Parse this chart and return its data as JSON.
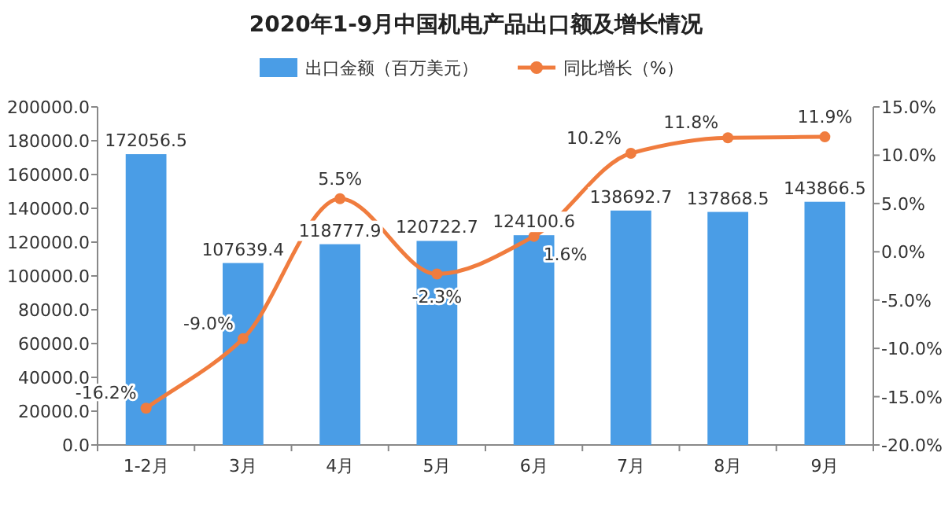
{
  "chart_data": {
    "type": "bar",
    "title": "2020年1-9月中国机电产品出口额及增长情况",
    "categories": [
      "1-2月",
      "3月",
      "4月",
      "5月",
      "6月",
      "7月",
      "8月",
      "9月"
    ],
    "series": [
      {
        "name": "出口金额（百万美元）",
        "type": "bar",
        "color": "#4a9de6",
        "values": [
          172056.5,
          107639.4,
          118777.9,
          120722.7,
          124100.6,
          138692.7,
          137868.5,
          143866.5
        ]
      },
      {
        "name": "同比增长（%）",
        "type": "line",
        "axis": "y2",
        "color": "#f07c3e",
        "marker": "circle",
        "values": [
          -16.2,
          -9.0,
          5.5,
          -2.3,
          1.6,
          10.2,
          11.8,
          11.9
        ],
        "value_labels": [
          "-16.2%",
          "-9.0%",
          "5.5%",
          "-2.3%",
          "1.6%",
          "10.2%",
          "11.8%",
          "11.9%"
        ]
      }
    ],
    "data_labels": true,
    "ylim": [
      0,
      200000
    ],
    "yticks": [
      {
        "value": 0,
        "label": "0.0"
      },
      {
        "value": 20000,
        "label": "20000.0"
      },
      {
        "value": 40000,
        "label": "40000.0"
      },
      {
        "value": 60000,
        "label": "60000.0"
      },
      {
        "value": 80000,
        "label": "80000.0"
      },
      {
        "value": 100000,
        "label": "100000.0"
      },
      {
        "value": 120000,
        "label": "120000.0"
      },
      {
        "value": 140000,
        "label": "140000.0"
      },
      {
        "value": 160000,
        "label": "160000.0"
      },
      {
        "value": 180000,
        "label": "180000.0"
      },
      {
        "value": 200000,
        "label": "200000.0"
      }
    ],
    "y2lim": [
      -20,
      15
    ],
    "y2ticks": [
      {
        "value": -20,
        "label": "-20.0%"
      },
      {
        "value": -15,
        "label": "-15.0%"
      },
      {
        "value": -10,
        "label": "-10.0%"
      },
      {
        "value": -5,
        "label": "-5.0%"
      },
      {
        "value": 0,
        "label": "0.0%"
      },
      {
        "value": 5,
        "label": "5.0%"
      },
      {
        "value": 10,
        "label": "10.0%"
      },
      {
        "value": 15,
        "label": "15.0%"
      }
    ],
    "legend": "top",
    "grid": false
  }
}
